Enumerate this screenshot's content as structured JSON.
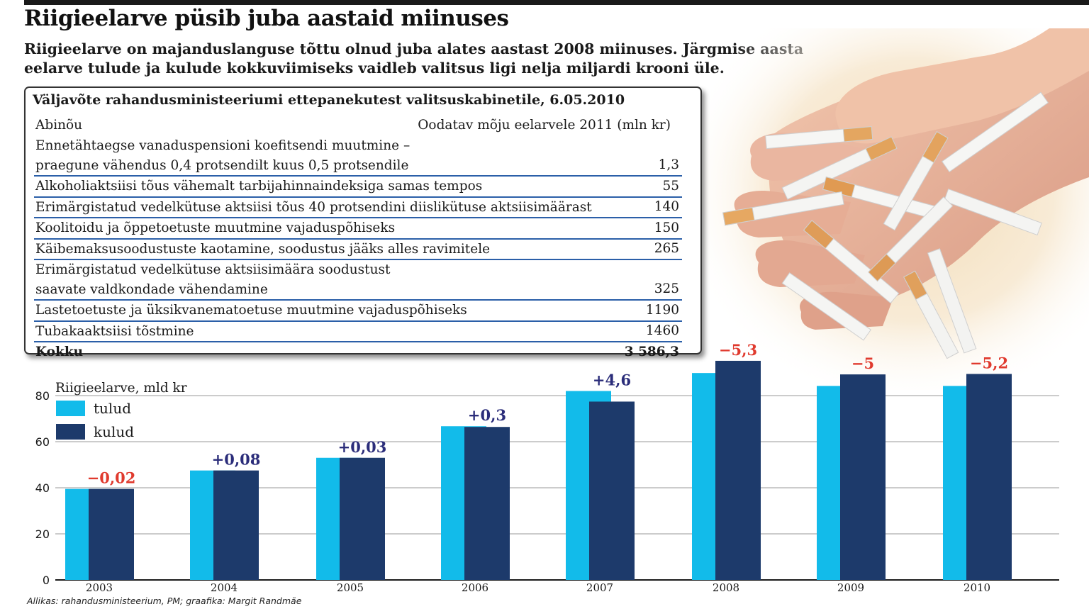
{
  "headline": "Riigieelarve püsib juba aastaid miinuses",
  "lead": "Riigieelarve on majanduslanguse tõttu olnud juba alates aastast 2008 miinuses. Järgmise aasta eelarve tulude ja kulude kokkuviimiseks vaidleb valitsus ligi nelja miljardi krooni üle.",
  "table": {
    "title": "Väljavõte rahandusministeeriumi ettepanekutest valitsuskabinetile, 6.05.2010",
    "col_measure": "Abinõu",
    "col_effect": "Oodatav mõju eelarvele 2011 (mln kr)",
    "rows": [
      {
        "name": "Ennetähtaegse vanaduspensioni koefitsendi muutmine – praegune vähendus 0,4 protsendilt kuus 0,5 protsendile",
        "line1": "Ennetähtaegse vanaduspensioni koefitsendi muutmine –",
        "line2": "praegune vähendus 0,4 protsendilt kuus 0,5 protsendile",
        "value": "1,3"
      },
      {
        "name": "Alkoholiaktsiisi tõus vähemalt tarbijahinnaindeksiga samas tempos",
        "value": "55"
      },
      {
        "name": "Erimärgistatud vedelkütuse aktsiisi tõus 40 protsendini diislikütuse aktsiisimäärast",
        "value": "140"
      },
      {
        "name": "Koolitoidu ja õppetoetuste muutmine vajaduspõhiseks",
        "value": "150"
      },
      {
        "name": "Käibemaksusoodustuste kaotamine, soodustus jääks alles ravimitele",
        "value": "265"
      },
      {
        "name": "Erimärgistatud vedelkütuse aktsiisimäära soodustust saavate valdkondade vähendamine",
        "line1": "Erimärgistatud vedelkütuse aktsiisimäära soodustust",
        "line2": "saavate valdkondade vähendamine",
        "value": "325"
      },
      {
        "name": "Lastetoetuste ja üksikvanematoetuse muutmine vajaduspõhiseks",
        "value": "1190"
      },
      {
        "name": "Tubakaaktsiisi tõstmine",
        "value": "1460"
      }
    ],
    "total_label": "Kokku",
    "total_value": "3 586,3"
  },
  "chart_data": {
    "type": "bar",
    "ylabel": "Riigieelarve, mld kr",
    "ylim": [
      0,
      90
    ],
    "yticks": [
      0,
      20,
      40,
      60,
      80
    ],
    "grid": true,
    "legend_position": "top-left",
    "categories": [
      "2003",
      "2004",
      "2005",
      "2006",
      "2007",
      "2008",
      "2009",
      "2010"
    ],
    "series": [
      {
        "name": "tulud",
        "color": "#12bbea",
        "values": [
          39.5,
          47.5,
          53.0,
          66.7,
          82.0,
          89.8,
          84.2,
          84.2
        ]
      },
      {
        "name": "kulud",
        "color": "#1d3a6b",
        "values": [
          39.5,
          47.5,
          53.0,
          66.4,
          77.4,
          95.1,
          89.2,
          89.4
        ]
      }
    ],
    "balance_labels": [
      "−0,02",
      "+0,08",
      "+0,03",
      "+0,3",
      "+4,6",
      "−5,3",
      "−5",
      "−5,2"
    ],
    "balance_colors": {
      "positive": "#2b2d7a",
      "negative": "#e03a2e"
    }
  },
  "source": "Allikas: rahandusministeerium, PM; graafika: Margit Randmäe",
  "photo": {
    "icon": "cigarettes-in-hand-illustration"
  }
}
